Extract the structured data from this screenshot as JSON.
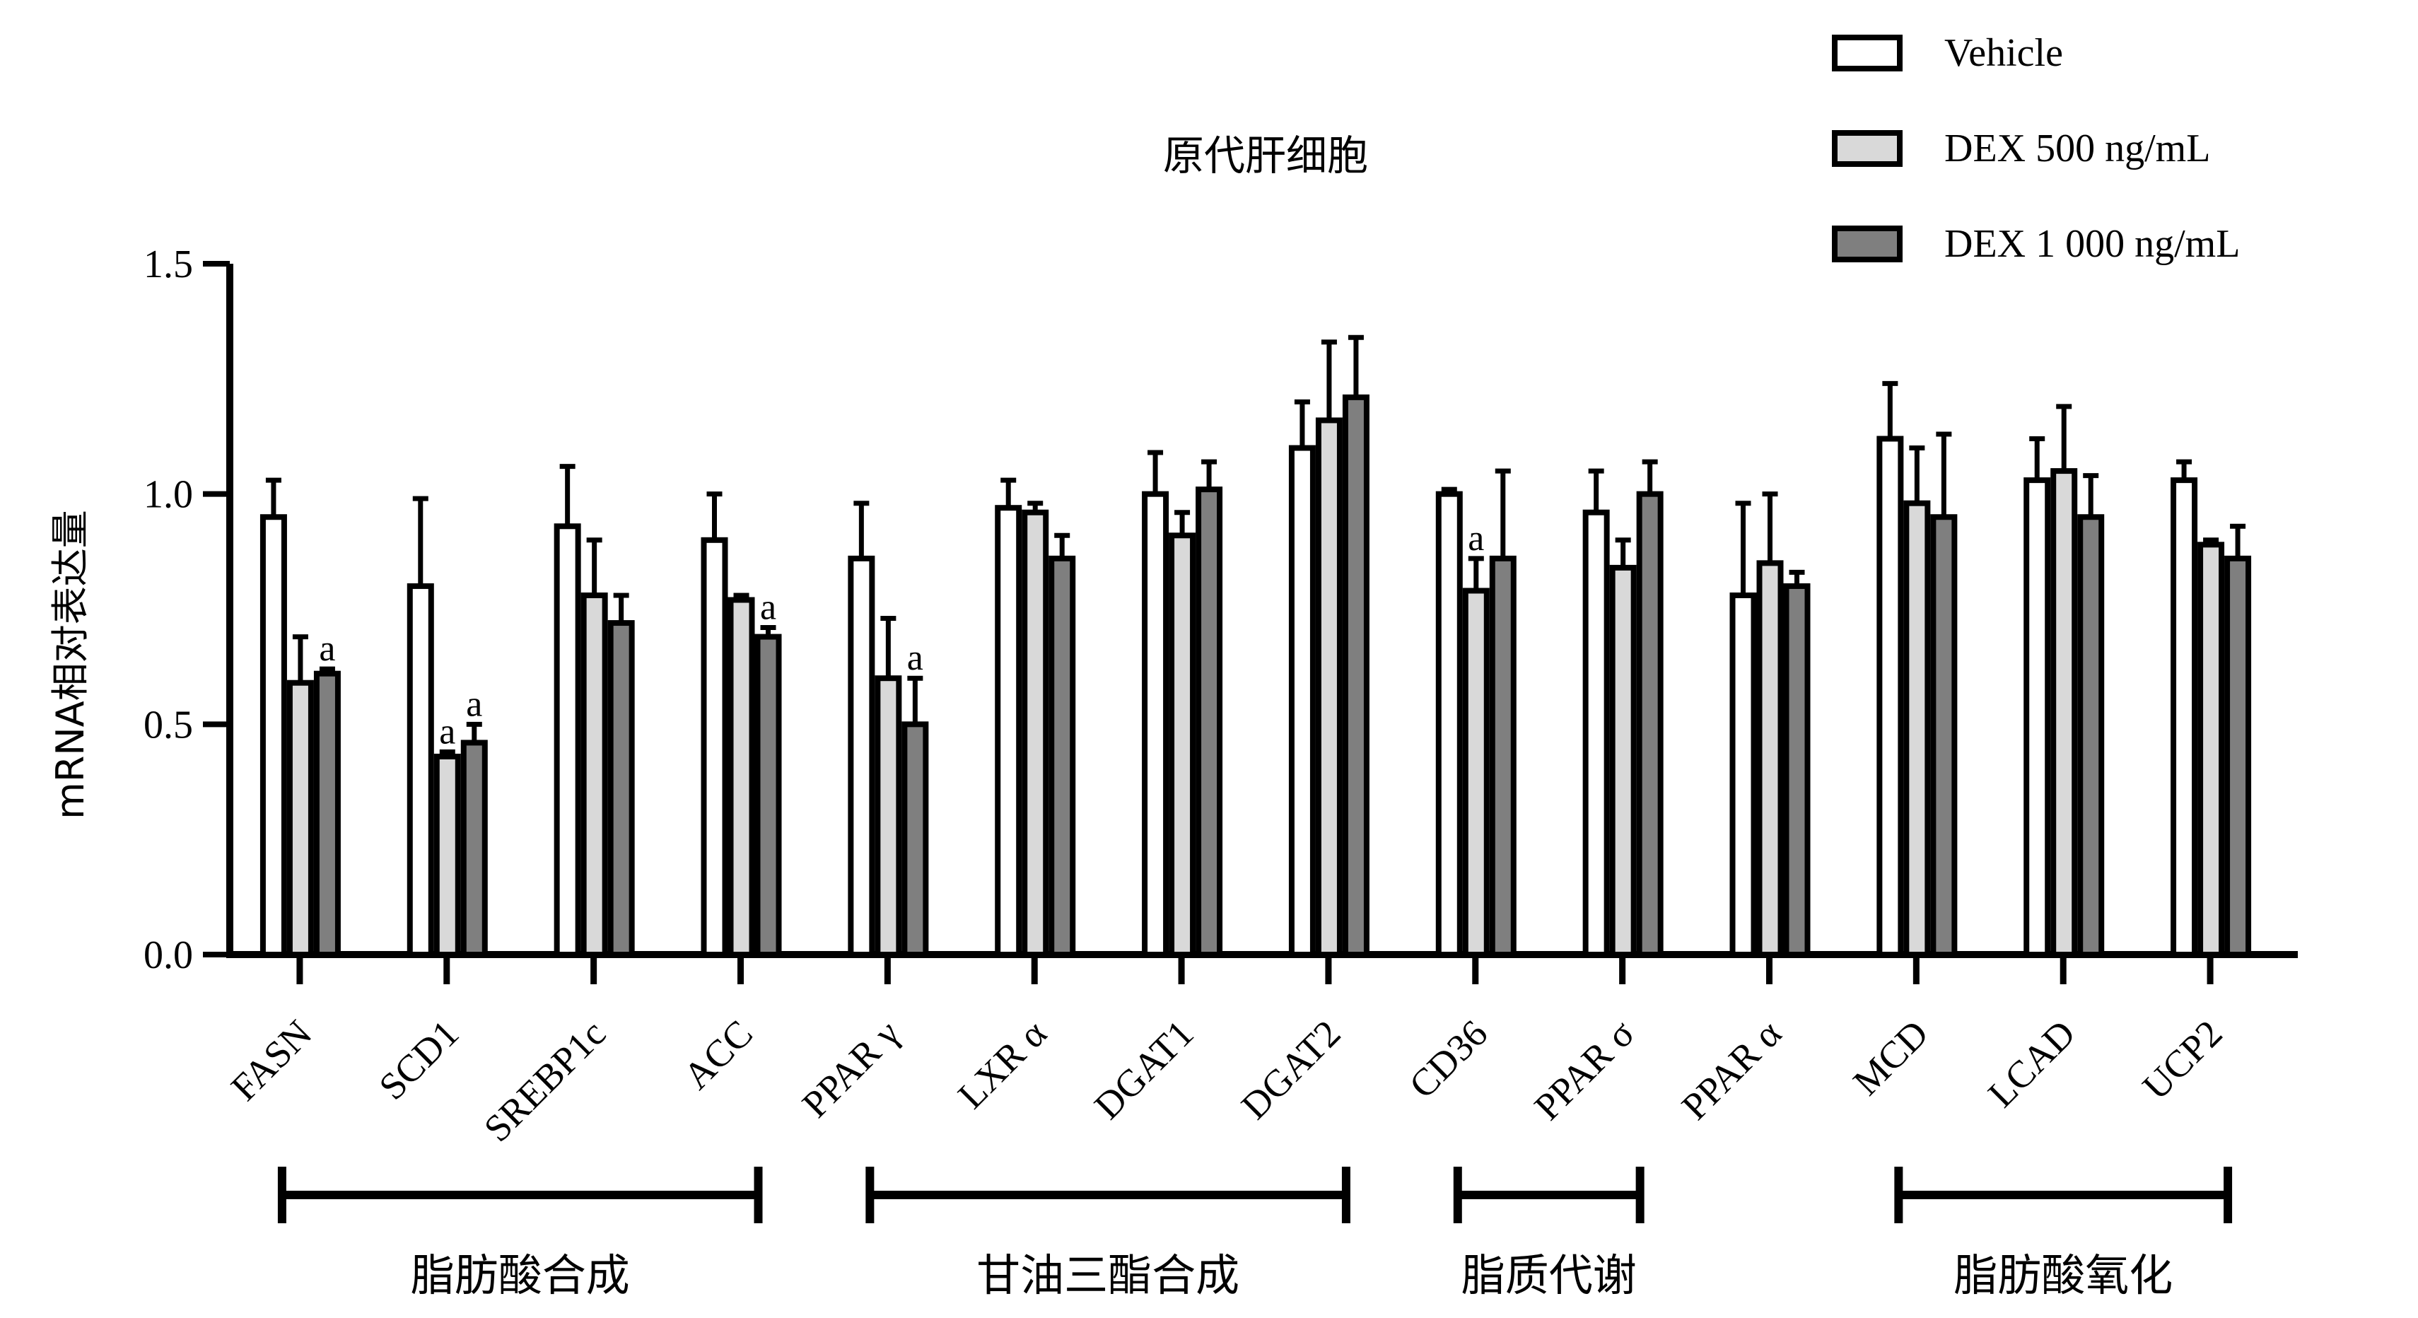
{
  "chart_data": {
    "type": "bar",
    "title": "原代肝细胞",
    "xlabel": "",
    "ylabel": "mRNA相对表达量",
    "ylim": [
      0,
      1.5
    ],
    "yticks": [
      "0.0",
      "0.5",
      "1.0",
      "1.5"
    ],
    "grid": false,
    "legend_position": "top-right",
    "categories": [
      "FASN",
      "SCD1",
      "SREBP1c",
      "ACC",
      "PPAR γ",
      "LXR α",
      "DGAT1",
      "DGAT2",
      "CD36",
      "PPAR σ",
      "PPAR α",
      "MCD",
      "LCAD",
      "UCP2"
    ],
    "series": [
      {
        "name": "Vehicle",
        "color": "#ffffff",
        "values": [
          0.95,
          0.8,
          0.93,
          0.9,
          0.86,
          0.97,
          1.0,
          1.1,
          1.0,
          0.96,
          0.78,
          1.12,
          1.03,
          1.03
        ],
        "errors": [
          0.08,
          0.19,
          0.13,
          0.1,
          0.12,
          0.06,
          0.09,
          0.1,
          0.01,
          0.09,
          0.2,
          0.12,
          0.09,
          0.04
        ],
        "annotations": [
          "",
          "",
          "",
          "",
          "",
          "",
          "",
          "",
          "",
          "",
          "",
          "",
          "",
          ""
        ]
      },
      {
        "name": "DEX 500 ng/mL",
        "color": "#d9d9d9",
        "values": [
          0.59,
          0.43,
          0.78,
          0.77,
          0.6,
          0.96,
          0.91,
          1.16,
          0.79,
          0.84,
          0.85,
          0.98,
          1.05,
          0.89
        ],
        "errors": [
          0.1,
          0.01,
          0.12,
          0.01,
          0.13,
          0.02,
          0.05,
          0.17,
          0.07,
          0.06,
          0.15,
          0.12,
          0.14,
          0.01
        ],
        "annotations": [
          "",
          "a",
          "",
          "",
          "",
          "",
          "",
          "",
          "a",
          "",
          "",
          "",
          "",
          ""
        ]
      },
      {
        "name": "DEX 1 000 ng/mL",
        "color": "#7f7f7f",
        "values": [
          0.61,
          0.46,
          0.72,
          0.69,
          0.5,
          0.86,
          1.01,
          1.21,
          0.86,
          1.0,
          0.8,
          0.95,
          0.95,
          0.86
        ],
        "errors": [
          0.01,
          0.04,
          0.06,
          0.02,
          0.1,
          0.05,
          0.06,
          0.13,
          0.19,
          0.07,
          0.03,
          0.18,
          0.09,
          0.07
        ],
        "annotations": [
          "a",
          "a",
          "",
          "a",
          "a",
          "",
          "",
          "",
          "",
          "",
          "",
          "",
          "",
          ""
        ]
      }
    ],
    "groups": [
      {
        "label": "脂肪酸合成",
        "categories": [
          "FASN",
          "ACC"
        ]
      },
      {
        "label": "甘油三酯合成",
        "categories": [
          "PPAR γ",
          "DGAT2"
        ]
      },
      {
        "label": "脂质代谢",
        "categories": [
          "CD36",
          "PPAR σ"
        ]
      },
      {
        "label": "脂肪酸氧化",
        "categories": [
          "MCD",
          "UCP2"
        ]
      }
    ]
  }
}
